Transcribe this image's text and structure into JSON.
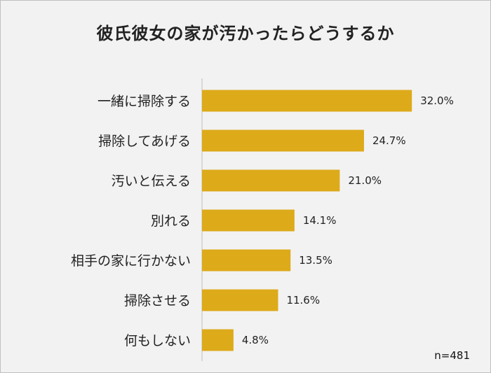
{
  "chart_data": {
    "type": "bar",
    "orientation": "horizontal",
    "title": "彼氏彼女の家が汚かったらどうするか",
    "categories": [
      "一緒に掃除する",
      "掃除してあげる",
      "汚いと伝える",
      "別れる",
      "相手の家に行かない",
      "掃除させる",
      "何もしない"
    ],
    "values": [
      32.0,
      24.7,
      21.0,
      14.1,
      13.5,
      11.6,
      4.8
    ],
    "value_labels": [
      "32.0%",
      "24.7%",
      "21.0%",
      "14.1%",
      "13.5%",
      "11.6%",
      "4.8%"
    ],
    "unit": "%",
    "xlim": [
      0,
      40
    ],
    "bar_color": "#ddaa1a",
    "grid": false,
    "legend": "none"
  },
  "note": "n=481"
}
